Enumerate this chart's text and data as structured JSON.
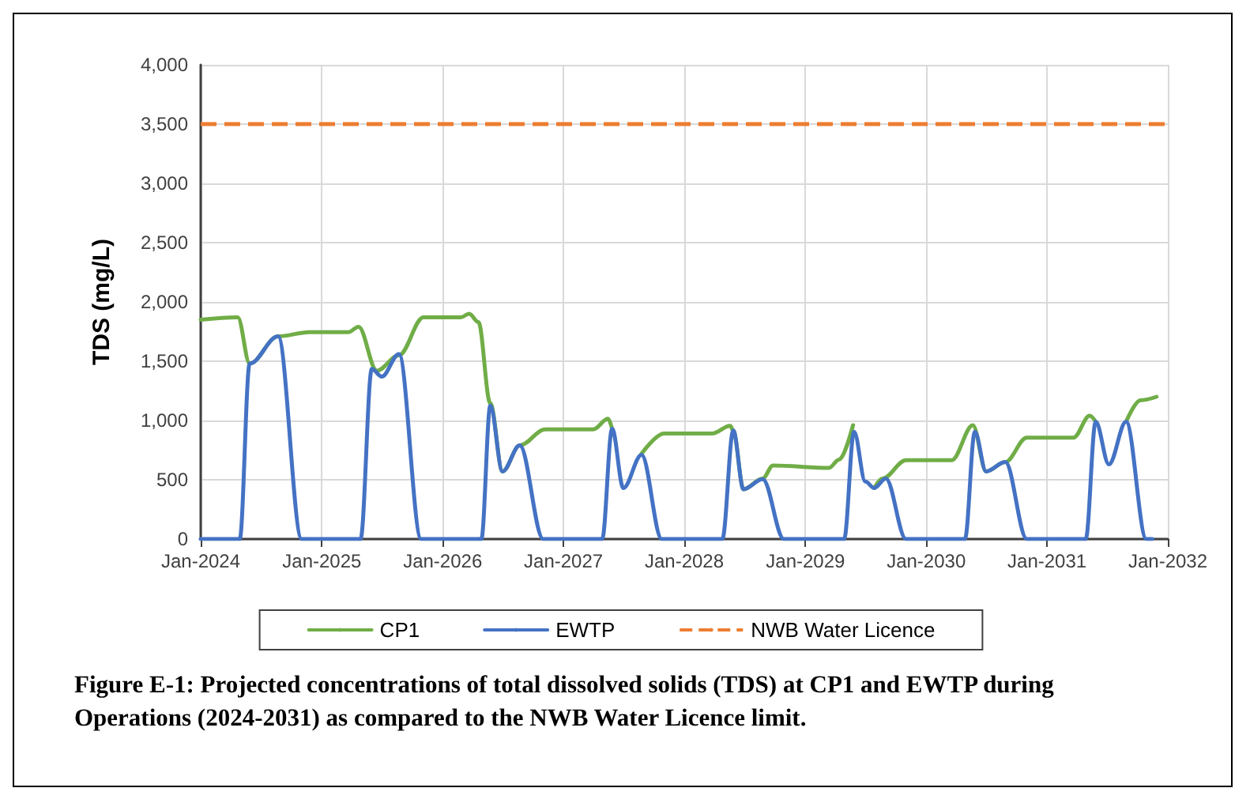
{
  "chart_data": {
    "type": "line",
    "ylabel": "TDS (mg/L)",
    "xlim": [
      "2024-01-01",
      "2032-01-01"
    ],
    "xticks": [
      {
        "value": "2024-01-01",
        "label": "Jan-2024"
      },
      {
        "value": "2025-01-01",
        "label": "Jan-2025"
      },
      {
        "value": "2026-01-01",
        "label": "Jan-2026"
      },
      {
        "value": "2027-01-01",
        "label": "Jan-2027"
      },
      {
        "value": "2028-01-01",
        "label": "Jan-2028"
      },
      {
        "value": "2029-01-01",
        "label": "Jan-2029"
      },
      {
        "value": "2030-01-01",
        "label": "Jan-2030"
      },
      {
        "value": "2031-01-01",
        "label": "Jan-2031"
      },
      {
        "value": "2032-01-01",
        "label": "Jan-2032"
      }
    ],
    "ylim": [
      0,
      4000
    ],
    "yticks": [
      0,
      500,
      {
        "value": 1000,
        "label": "1,000"
      },
      {
        "value": 1500,
        "label": "1,500"
      },
      {
        "value": 2000,
        "label": "2,000"
      },
      {
        "value": 2500,
        "label": "2,500"
      },
      {
        "value": 3000,
        "label": "3,000"
      },
      {
        "value": 3500,
        "label": "3,500"
      },
      {
        "value": 4000,
        "label": "4,000"
      }
    ],
    "grid": true,
    "legend": "bottom",
    "line_style": "solid",
    "series": [
      {
        "name": "CP1",
        "color": "#70ad47",
        "x": [
          "2024-01-01",
          "2024-04-22",
          "2024-05-28",
          "2024-08-22",
          "2024-11-25",
          "2025-03-22",
          "2025-04-22",
          "2025-06-16",
          "2025-08-22",
          "2025-11-04",
          "2026-02-25",
          "2026-03-22",
          "2026-04-19",
          "2026-05-25",
          "2026-07-01",
          "2026-08-22",
          "2026-11-07",
          "2027-04-01",
          "2027-05-16",
          "2027-05-28",
          "2027-07-01",
          "2027-08-25",
          "2027-11-01",
          "2028-03-25",
          "2028-05-19",
          "2028-05-28",
          "2028-06-28",
          "2028-08-25",
          "2028-09-25",
          "2029-03-13",
          "2029-04-13",
          "2029-05-25",
          "2029-07-01",
          "2029-07-28",
          "2029-08-22",
          "2029-11-01",
          "2030-03-19",
          "2030-05-22",
          "2030-07-01",
          "2030-08-28",
          "2030-11-01",
          "2031-03-22",
          "2031-05-10",
          "2031-05-28",
          "2031-07-07",
          "2031-08-28",
          "2031-10-10",
          "2031-11-28"
        ],
        "values": [
          1850,
          1870,
          1480,
          1710,
          1745,
          1745,
          1790,
          1420,
          1550,
          1870,
          1870,
          1900,
          1830,
          1145,
          570,
          790,
          925,
          925,
          1015,
          930,
          null,
          720,
          890,
          890,
          955,
          915,
          420,
          510,
          620,
          600,
          670,
          960,
          null,
          430,
          510,
          665,
          665,
          960,
          570,
          650,
          855,
          855,
          1040,
          990,
          null,
          990,
          1170,
          1200
        ]
      },
      {
        "name": "EWTP",
        "color": "#4472c4",
        "x": [
          "2024-01-01",
          "2024-04-28",
          "2024-05-28",
          "2024-08-22",
          "2024-11-01",
          "2025-04-28",
          "2025-06-01",
          "2025-07-01",
          "2025-08-22",
          "2025-10-28",
          "2026-04-28",
          "2026-05-25",
          "2026-07-01",
          "2026-08-22",
          "2026-11-01",
          "2027-04-28",
          "2027-05-28",
          "2027-07-01",
          "2027-08-25",
          "2027-10-25",
          "2028-04-25",
          "2028-05-28",
          "2028-06-28",
          "2028-08-25",
          "2028-10-28",
          "2029-04-28",
          "2029-05-28",
          "2029-07-01",
          "2029-07-28",
          "2029-09-01",
          "2029-11-01",
          "2030-04-28",
          "2030-05-28",
          "2030-07-01",
          "2030-08-28",
          "2030-11-01",
          "2031-04-28",
          "2031-05-28",
          "2031-07-07",
          "2031-08-28",
          "2031-10-28",
          "2031-11-15"
        ],
        "values": [
          0,
          0,
          1480,
          1710,
          0,
          0,
          1435,
          1370,
          1560,
          0,
          0,
          1125,
          570,
          790,
          0,
          0,
          930,
          430,
          710,
          0,
          0,
          915,
          420,
          505,
          0,
          0,
          905,
          485,
          430,
          510,
          0,
          0,
          905,
          570,
          650,
          0,
          0,
          990,
          630,
          990,
          0,
          0
        ]
      }
    ],
    "ref_lines": [
      {
        "axis": "y",
        "value": 3500,
        "label": "NWB Water Licence",
        "color": "#ed7d31",
        "line_style": "dashed"
      }
    ],
    "annotations": [
      "Figure E-1: Projected concentrations of total dissolved solids (TDS) at CP1 and EWTP during Operations (2024-2031) as compared to the NWB Water Licence limit."
    ]
  }
}
